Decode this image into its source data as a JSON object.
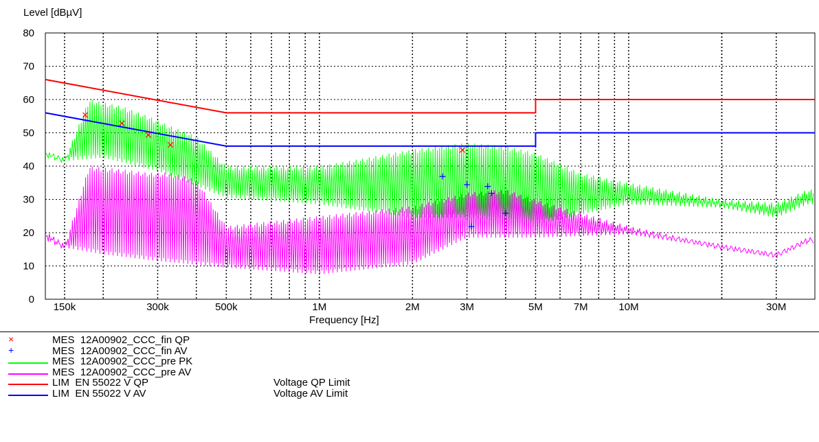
{
  "chart_data": {
    "type": "line",
    "ylabel": "Level [dBµV]",
    "xlabel": "Frequency [Hz]",
    "x_scale": "log",
    "xlim": [
      130000,
      40000000
    ],
    "ylim": [
      0,
      80
    ],
    "y_ticks": [
      0,
      10,
      20,
      30,
      40,
      50,
      60,
      70,
      80
    ],
    "x_tick_labels": [
      {
        "value": 150000,
        "label": "150k"
      },
      {
        "value": 300000,
        "label": "300k"
      },
      {
        "value": 500000,
        "label": "500k"
      },
      {
        "value": 1000000,
        "label": "1M"
      },
      {
        "value": 2000000,
        "label": "2M"
      },
      {
        "value": 3000000,
        "label": "3M"
      },
      {
        "value": 5000000,
        "label": "5M"
      },
      {
        "value": 7000000,
        "label": "7M"
      },
      {
        "value": 10000000,
        "label": "10M"
      },
      {
        "value": 30000000,
        "label": "30M"
      }
    ],
    "grid": true,
    "limits": [
      {
        "name": "LIM  EN 55022 V QP",
        "description": "Voltage QP Limit",
        "color": "#ff0000",
        "points": [
          [
            130000,
            66
          ],
          [
            500000,
            56
          ],
          [
            5000000,
            56
          ],
          [
            5000000,
            60
          ],
          [
            40000000,
            60
          ]
        ]
      },
      {
        "name": "LIM  EN 55022 V AV",
        "description": "Voltage AV Limit",
        "color": "#0000ff",
        "points": [
          [
            130000,
            56
          ],
          [
            500000,
            46
          ],
          [
            5000000,
            46
          ],
          [
            5000000,
            50
          ],
          [
            40000000,
            50
          ]
        ]
      }
    ],
    "markers": [
      {
        "name": "MES  12A00902_CCC_fin QP",
        "symbol": "×",
        "color": "#ff0000",
        "points": [
          [
            175000,
            55.5
          ],
          [
            230000,
            53
          ],
          [
            280000,
            49.5
          ],
          [
            330000,
            46.5
          ],
          [
            2900000,
            45
          ]
        ]
      },
      {
        "name": "MES  12A00902_CCC_fin AV",
        "symbol": "+",
        "color": "#0000ff",
        "points": [
          [
            2500000,
            37
          ],
          [
            3000000,
            34.5
          ],
          [
            3500000,
            34
          ],
          [
            3600000,
            32
          ],
          [
            3100000,
            22
          ],
          [
            4000000,
            26
          ]
        ]
      }
    ],
    "scans": [
      {
        "name": "MES  12A00902_CCC_pre PK",
        "color": "#00ff00",
        "envelope": [
          [
            130000,
            44
          ],
          [
            150000,
            42
          ],
          [
            180000,
            60
          ],
          [
            230000,
            58
          ],
          [
            280000,
            55
          ],
          [
            330000,
            52
          ],
          [
            400000,
            49
          ],
          [
            500000,
            40
          ],
          [
            1000000,
            40
          ],
          [
            2000000,
            45
          ],
          [
            3000000,
            47
          ],
          [
            4000000,
            46
          ],
          [
            5000000,
            44
          ],
          [
            7000000,
            38
          ],
          [
            10000000,
            35
          ],
          [
            20000000,
            30
          ],
          [
            30000000,
            29
          ],
          [
            38000000,
            33
          ]
        ],
        "floor": [
          [
            130000,
            43
          ],
          [
            150000,
            41
          ],
          [
            200000,
            42
          ],
          [
            300000,
            38
          ],
          [
            500000,
            30
          ],
          [
            1000000,
            28
          ],
          [
            2000000,
            24
          ],
          [
            3000000,
            24
          ],
          [
            5000000,
            22
          ],
          [
            10000000,
            28
          ],
          [
            20000000,
            27
          ],
          [
            30000000,
            24
          ],
          [
            38000000,
            28
          ]
        ]
      },
      {
        "name": "MES  12A00902_CCC_pre AV",
        "color": "#ff00ff",
        "envelope": [
          [
            130000,
            19
          ],
          [
            150000,
            16
          ],
          [
            180000,
            40
          ],
          [
            230000,
            39
          ],
          [
            280000,
            38
          ],
          [
            330000,
            38
          ],
          [
            400000,
            36
          ],
          [
            500000,
            22
          ],
          [
            1000000,
            25
          ],
          [
            2000000,
            28
          ],
          [
            3000000,
            32
          ],
          [
            4000000,
            33
          ],
          [
            5000000,
            30
          ],
          [
            7000000,
            26
          ],
          [
            10000000,
            22
          ],
          [
            20000000,
            16
          ],
          [
            30000000,
            14
          ],
          [
            38000000,
            18
          ]
        ],
        "floor": [
          [
            130000,
            19
          ],
          [
            150000,
            15
          ],
          [
            200000,
            13
          ],
          [
            300000,
            11
          ],
          [
            500000,
            9
          ],
          [
            1000000,
            7
          ],
          [
            2000000,
            10
          ],
          [
            3000000,
            18
          ],
          [
            5000000,
            18
          ],
          [
            10000000,
            19
          ],
          [
            20000000,
            15
          ],
          [
            30000000,
            12
          ],
          [
            38000000,
            17
          ]
        ]
      }
    ]
  },
  "legend": [
    {
      "kind": "marker",
      "symbol": "×",
      "color": "#ff0000",
      "label": "MES  12A00902_CCC_fin QP",
      "description": ""
    },
    {
      "kind": "marker",
      "symbol": "+",
      "color": "#0000ff",
      "label": "MES  12A00902_CCC_fin AV",
      "description": ""
    },
    {
      "kind": "line",
      "color": "#00ff00",
      "label": "MES  12A00902_CCC_pre PK",
      "description": ""
    },
    {
      "kind": "line",
      "color": "#ff00ff",
      "label": "MES  12A00902_CCC_pre AV",
      "description": ""
    },
    {
      "kind": "line",
      "color": "#ff0000",
      "label": "LIM  EN 55022 V QP",
      "description": "Voltage QP Limit"
    },
    {
      "kind": "line",
      "color": "#0000ff",
      "label": "LIM  EN 55022 V AV",
      "description": "Voltage AV Limit"
    }
  ]
}
